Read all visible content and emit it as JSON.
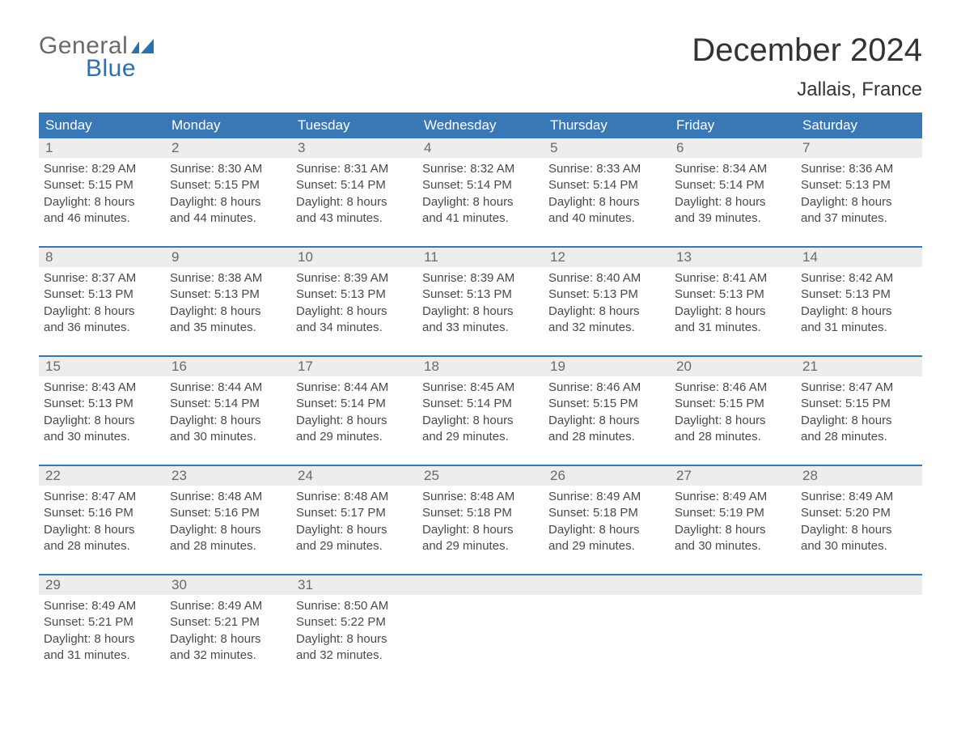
{
  "logo": {
    "line1": "General",
    "line2": "Blue",
    "icon_color": "#2e6fb0"
  },
  "title": "December 2024",
  "location": "Jallais, France",
  "colors": {
    "header_bg": "#3a77b5",
    "header_text": "#ffffff",
    "week_border": "#3a77b5",
    "daynum_bg": "#ededed",
    "daynum_text": "#6a6a6a",
    "body_text": "#4a4a4a",
    "title_text": "#333333",
    "background": "#ffffff"
  },
  "day_names": [
    "Sunday",
    "Monday",
    "Tuesday",
    "Wednesday",
    "Thursday",
    "Friday",
    "Saturday"
  ],
  "labels": {
    "sunrise": "Sunrise:",
    "sunset": "Sunset:",
    "daylight": "Daylight:"
  },
  "weeks": [
    [
      {
        "n": 1,
        "sunrise": "8:29 AM",
        "sunset": "5:15 PM",
        "daylight": "8 hours and 46 minutes."
      },
      {
        "n": 2,
        "sunrise": "8:30 AM",
        "sunset": "5:15 PM",
        "daylight": "8 hours and 44 minutes."
      },
      {
        "n": 3,
        "sunrise": "8:31 AM",
        "sunset": "5:14 PM",
        "daylight": "8 hours and 43 minutes."
      },
      {
        "n": 4,
        "sunrise": "8:32 AM",
        "sunset": "5:14 PM",
        "daylight": "8 hours and 41 minutes."
      },
      {
        "n": 5,
        "sunrise": "8:33 AM",
        "sunset": "5:14 PM",
        "daylight": "8 hours and 40 minutes."
      },
      {
        "n": 6,
        "sunrise": "8:34 AM",
        "sunset": "5:14 PM",
        "daylight": "8 hours and 39 minutes."
      },
      {
        "n": 7,
        "sunrise": "8:36 AM",
        "sunset": "5:13 PM",
        "daylight": "8 hours and 37 minutes."
      }
    ],
    [
      {
        "n": 8,
        "sunrise": "8:37 AM",
        "sunset": "5:13 PM",
        "daylight": "8 hours and 36 minutes."
      },
      {
        "n": 9,
        "sunrise": "8:38 AM",
        "sunset": "5:13 PM",
        "daylight": "8 hours and 35 minutes."
      },
      {
        "n": 10,
        "sunrise": "8:39 AM",
        "sunset": "5:13 PM",
        "daylight": "8 hours and 34 minutes."
      },
      {
        "n": 11,
        "sunrise": "8:39 AM",
        "sunset": "5:13 PM",
        "daylight": "8 hours and 33 minutes."
      },
      {
        "n": 12,
        "sunrise": "8:40 AM",
        "sunset": "5:13 PM",
        "daylight": "8 hours and 32 minutes."
      },
      {
        "n": 13,
        "sunrise": "8:41 AM",
        "sunset": "5:13 PM",
        "daylight": "8 hours and 31 minutes."
      },
      {
        "n": 14,
        "sunrise": "8:42 AM",
        "sunset": "5:13 PM",
        "daylight": "8 hours and 31 minutes."
      }
    ],
    [
      {
        "n": 15,
        "sunrise": "8:43 AM",
        "sunset": "5:13 PM",
        "daylight": "8 hours and 30 minutes."
      },
      {
        "n": 16,
        "sunrise": "8:44 AM",
        "sunset": "5:14 PM",
        "daylight": "8 hours and 30 minutes."
      },
      {
        "n": 17,
        "sunrise": "8:44 AM",
        "sunset": "5:14 PM",
        "daylight": "8 hours and 29 minutes."
      },
      {
        "n": 18,
        "sunrise": "8:45 AM",
        "sunset": "5:14 PM",
        "daylight": "8 hours and 29 minutes."
      },
      {
        "n": 19,
        "sunrise": "8:46 AM",
        "sunset": "5:15 PM",
        "daylight": "8 hours and 28 minutes."
      },
      {
        "n": 20,
        "sunrise": "8:46 AM",
        "sunset": "5:15 PM",
        "daylight": "8 hours and 28 minutes."
      },
      {
        "n": 21,
        "sunrise": "8:47 AM",
        "sunset": "5:15 PM",
        "daylight": "8 hours and 28 minutes."
      }
    ],
    [
      {
        "n": 22,
        "sunrise": "8:47 AM",
        "sunset": "5:16 PM",
        "daylight": "8 hours and 28 minutes."
      },
      {
        "n": 23,
        "sunrise": "8:48 AM",
        "sunset": "5:16 PM",
        "daylight": "8 hours and 28 minutes."
      },
      {
        "n": 24,
        "sunrise": "8:48 AM",
        "sunset": "5:17 PM",
        "daylight": "8 hours and 29 minutes."
      },
      {
        "n": 25,
        "sunrise": "8:48 AM",
        "sunset": "5:18 PM",
        "daylight": "8 hours and 29 minutes."
      },
      {
        "n": 26,
        "sunrise": "8:49 AM",
        "sunset": "5:18 PM",
        "daylight": "8 hours and 29 minutes."
      },
      {
        "n": 27,
        "sunrise": "8:49 AM",
        "sunset": "5:19 PM",
        "daylight": "8 hours and 30 minutes."
      },
      {
        "n": 28,
        "sunrise": "8:49 AM",
        "sunset": "5:20 PM",
        "daylight": "8 hours and 30 minutes."
      }
    ],
    [
      {
        "n": 29,
        "sunrise": "8:49 AM",
        "sunset": "5:21 PM",
        "daylight": "8 hours and 31 minutes."
      },
      {
        "n": 30,
        "sunrise": "8:49 AM",
        "sunset": "5:21 PM",
        "daylight": "8 hours and 32 minutes."
      },
      {
        "n": 31,
        "sunrise": "8:50 AM",
        "sunset": "5:22 PM",
        "daylight": "8 hours and 32 minutes."
      },
      null,
      null,
      null,
      null
    ]
  ]
}
